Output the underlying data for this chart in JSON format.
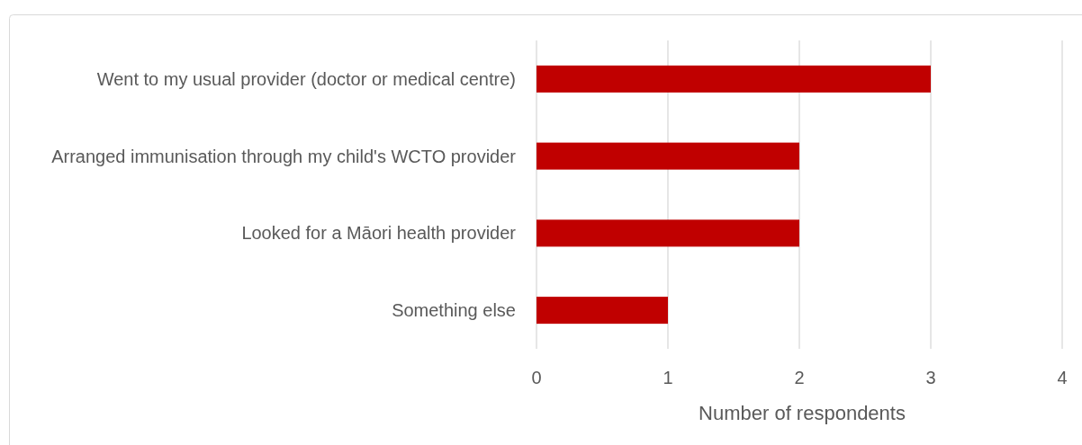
{
  "chart_data": {
    "type": "bar",
    "orientation": "horizontal",
    "xlabel": "Number of respondents",
    "categories": [
      "Went to my usual provider (doctor or medical centre)",
      "Arranged immunisation through my child's WCTO provider",
      "Looked for a Māori health provider",
      "Something else"
    ],
    "values": [
      3,
      2,
      2,
      1
    ],
    "color": "#c00000",
    "xlim": [
      0,
      4
    ],
    "xticks": [
      0,
      1,
      2,
      3,
      4
    ],
    "grid": "x"
  }
}
